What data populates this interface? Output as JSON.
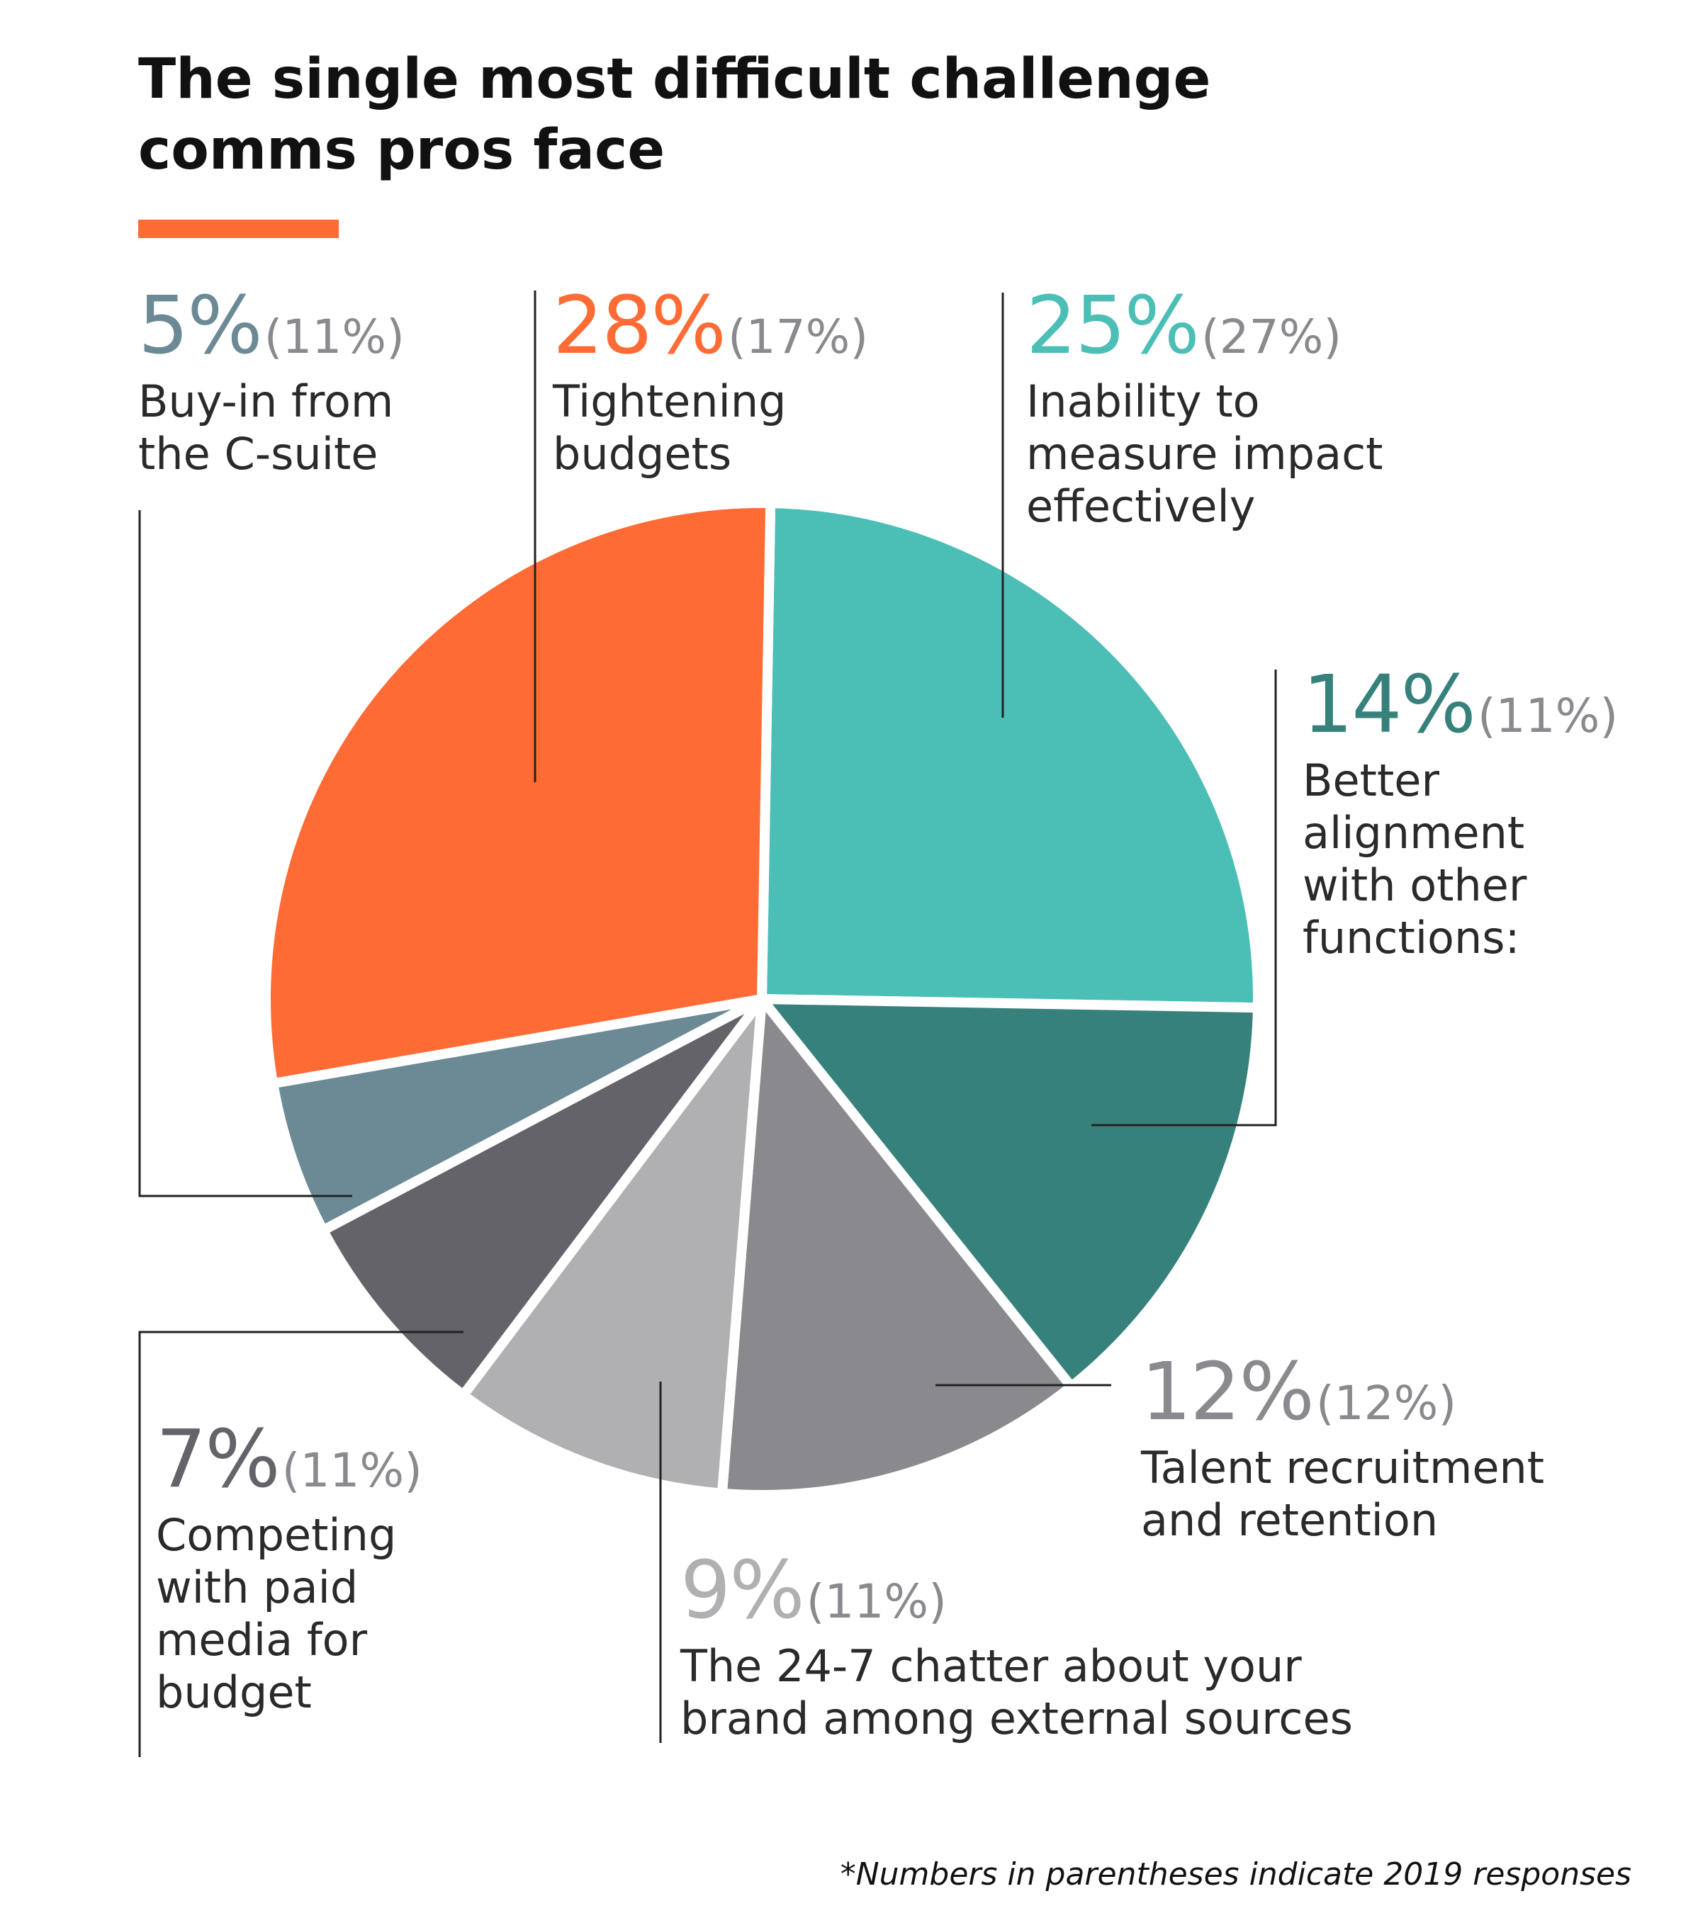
{
  "title": "The single most difficult challenge comms pros face",
  "footnote": "*Numbers in parentheses indicate 2019 responses",
  "colors": {
    "accent": "#FF6B35"
  },
  "chart_data": {
    "type": "pie",
    "title": "The single most difficult challenge comms pros face",
    "slices": [
      {
        "label": "Inability to measure impact effectively",
        "value": 25,
        "value_text": "25%",
        "prev_text": "(27%)",
        "color": "#4BBEB5",
        "label_color": "#4BBEB5"
      },
      {
        "label": "Better alignment with other functions:",
        "value": 14,
        "value_text": "14%",
        "prev_text": "(11%)",
        "color": "#37817C",
        "label_color": "#37817C"
      },
      {
        "label": "Talent recruitment and retention",
        "value": 12,
        "value_text": "12%",
        "prev_text": "(12%)",
        "color": "#8A898E",
        "label_color": "#8A898E"
      },
      {
        "label": "The 24-7 chatter about your brand among external sources",
        "value": 9,
        "value_text": "9%",
        "prev_text": "(11%)",
        "color": "#B0B0B2",
        "label_color": "#B0B0B2"
      },
      {
        "label": "Competing with paid media for budget",
        "value": 7,
        "value_text": "7%",
        "prev_text": "(11%)",
        "color": "#64636A",
        "label_color": "#64636A"
      },
      {
        "label": "Buy-in from the C-suite",
        "value": 5,
        "value_text": "5%",
        "prev_text": "(11%)",
        "color": "#6C8A95",
        "label_color": "#6C8A95"
      },
      {
        "label": "Tightening budgets",
        "value": 28,
        "value_text": "28%",
        "prev_text": "(17%)",
        "color": "#FF6B35",
        "label_color": "#FF6B35"
      }
    ]
  },
  "labels": {
    "buyin": {
      "pct": "5%",
      "prev": "(11%)",
      "desc": "Buy-in from\nthe C-suite"
    },
    "tight": {
      "pct": "28%",
      "prev": "(17%)",
      "desc": "Tightening\nbudgets"
    },
    "measure": {
      "pct": "25%",
      "prev": "(27%)",
      "desc": "Inability to\nmeasure impact\neffectively"
    },
    "align": {
      "pct": "14%",
      "prev": "(11%)",
      "desc": "Better\nalignment\nwith other\nfunctions:"
    },
    "talent": {
      "pct": "12%",
      "prev": "(12%)",
      "desc": "Talent recruitment\nand retention"
    },
    "chatter": {
      "pct": "9%",
      "prev": "(11%)",
      "desc": "The 24-7 chatter about your\nbrand among external sources"
    },
    "paid": {
      "pct": "7%",
      "prev": "(11%)",
      "desc": "Competing\nwith paid\nmedia for\nbudget"
    }
  }
}
